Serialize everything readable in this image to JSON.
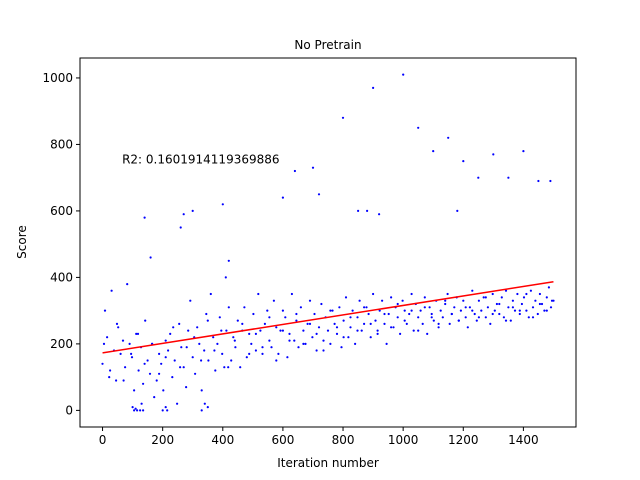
{
  "chart_data": {
    "type": "scatter",
    "title": "No Pretrain",
    "xlabel": "Iteration number",
    "ylabel": "Score",
    "xlim": [
      -75,
      1575
    ],
    "ylim": [
      -50,
      1060
    ],
    "xticks": [
      0,
      200,
      400,
      600,
      800,
      1000,
      1200,
      1400
    ],
    "yticks": [
      0,
      200,
      400,
      600,
      800,
      1000
    ],
    "grid": false,
    "annotation": {
      "text": "R2: 0.1601914119369886",
      "x": 65,
      "y": 755
    },
    "regression_line": {
      "x": [
        0,
        1500
      ],
      "y": [
        173,
        387
      ],
      "color": "#ff0000"
    },
    "point_color": "#0000ff",
    "series": [
      {
        "x": [
          0,
          8,
          15,
          22,
          30,
          38,
          45,
          52,
          60,
          68,
          75,
          82,
          90,
          98,
          105,
          112,
          120,
          128,
          135,
          142,
          150,
          158,
          165,
          172,
          180,
          188,
          195,
          202,
          210,
          218,
          225,
          232,
          240,
          248,
          255,
          262,
          270,
          278,
          285,
          292,
          300,
          308,
          315,
          322,
          330,
          338,
          345,
          352,
          360,
          368,
          375,
          382,
          390,
          398,
          405,
          412,
          420,
          428,
          435,
          442,
          450,
          458,
          465,
          472,
          480,
          488,
          495,
          502,
          510,
          518,
          525,
          532,
          540,
          548,
          555,
          562,
          570,
          578,
          585,
          592,
          600,
          608,
          615,
          622,
          630,
          638,
          645,
          652,
          660,
          668,
          675,
          682,
          690,
          698,
          705,
          712,
          720,
          728,
          735,
          742,
          750,
          758,
          765,
          772,
          780,
          788,
          795,
          802,
          810,
          818,
          825,
          832,
          840,
          848,
          855,
          862,
          870,
          878,
          885,
          892,
          900,
          908,
          915,
          922,
          930,
          938,
          945,
          952,
          960,
          968,
          975,
          982,
          990,
          998,
          1005,
          1012,
          1020,
          1028,
          1035,
          1042,
          1050,
          1058,
          1065,
          1072,
          1080,
          1088,
          1095,
          1102,
          1110,
          1118,
          1125,
          1132,
          1140,
          1148,
          1155,
          1162,
          1170,
          1178,
          1185,
          1192,
          1200,
          1208,
          1215,
          1222,
          1230,
          1238,
          1245,
          1252,
          1260,
          1268,
          1275,
          1282,
          1290,
          1298,
          1305,
          1312,
          1320,
          1328,
          1335,
          1342,
          1350,
          1358,
          1365,
          1372,
          1380,
          1388,
          1395,
          1402,
          1410,
          1418,
          1425,
          1432,
          1440,
          1448,
          1455,
          1462,
          1470,
          1478,
          1485,
          1492,
          1500,
          5,
          25,
          48,
          70,
          95,
          118,
          140,
          165,
          188,
          210,
          235,
          258,
          280,
          305,
          328,
          350,
          372,
          395,
          418,
          440,
          465,
          488,
          510,
          532,
          555,
          578,
          600,
          622,
          645,
          668,
          690,
          712,
          735,
          758,
          780,
          802,
          825,
          848,
          870,
          892,
          915,
          938,
          960,
          982,
          1005,
          1028,
          1050,
          1072,
          1095,
          1118,
          1140,
          1162,
          1185,
          1208,
          1230,
          1252,
          1275,
          1298,
          1320,
          1342,
          1365,
          1388,
          1410,
          1432,
          1455,
          1478,
          1495,
          100,
          105,
          110,
          115,
          125,
          130,
          135,
          200,
          210,
          215,
          330,
          340,
          350,
          260,
          270,
          300,
          140,
          160,
          400,
          410,
          420,
          600,
          640,
          700,
          720,
          800,
          850,
          880,
          900,
          920,
          1000,
          1050,
          1100,
          1150,
          1180,
          1200,
          1250,
          1300,
          1350,
          1400,
          1450,
          1490
        ],
        "y": [
          140,
          300,
          220,
          100,
          360,
          180,
          90,
          250,
          170,
          210,
          130,
          380,
          200,
          160,
          60,
          230,
          120,
          190,
          80,
          270,
          150,
          110,
          200,
          40,
          90,
          170,
          140,
          60,
          210,
          180,
          230,
          100,
          150,
          20,
          260,
          190,
          130,
          70,
          240,
          330,
          160,
          110,
          250,
          200,
          60,
          180,
          290,
          150,
          350,
          220,
          120,
          200,
          280,
          170,
          130,
          240,
          310,
          150,
          220,
          190,
          270,
          130,
          240,
          310,
          160,
          230,
          200,
          290,
          180,
          350,
          240,
          170,
          260,
          300,
          210,
          190,
          330,
          250,
          170,
          240,
          300,
          280,
          160,
          230,
          350,
          210,
          270,
          190,
          310,
          240,
          200,
          260,
          330,
          220,
          290,
          180,
          250,
          320,
          210,
          280,
          240,
          200,
          300,
          260,
          230,
          310,
          190,
          270,
          340,
          220,
          250,
          300,
          200,
          280,
          330,
          240,
          260,
          310,
          290,
          220,
          350,
          270,
          240,
          300,
          330,
          260,
          200,
          290,
          340,
          250,
          310,
          280,
          230,
          330,
          300,
          260,
          290,
          350,
          240,
          320,
          280,
          300,
          260,
          340,
          230,
          310,
          290,
          270,
          330,
          250,
          300,
          280,
          320,
          350,
          260,
          290,
          310,
          340,
          270,
          300,
          330,
          280,
          250,
          310,
          360,
          290,
          270,
          330,
          300,
          340,
          280,
          310,
          260,
          350,
          300,
          320,
          290,
          340,
          280,
          360,
          310,
          270,
          330,
          300,
          350,
          290,
          320,
          340,
          300,
          280,
          360,
          310,
          330,
          290,
          350,
          320,
          300,
          340,
          370,
          310,
          330,
          200,
          120,
          260,
          90,
          170,
          230,
          140,
          200,
          110,
          160,
          250,
          130,
          190,
          220,
          150,
          270,
          180,
          240,
          130,
          210,
          260,
          170,
          230,
          190,
          280,
          150,
          240,
          210,
          290,
          200,
          260,
          230,
          180,
          300,
          250,
          220,
          280,
          240,
          310,
          260,
          230,
          290,
          250,
          320,
          270,
          300,
          240,
          310,
          280,
          260,
          330,
          290,
          270,
          310,
          300,
          280,
          340,
          290,
          320,
          270,
          310,
          300,
          350,
          280,
          320,
          300,
          330,
          10,
          0,
          5,
          0,
          0,
          20,
          0,
          0,
          10,
          0,
          0,
          20,
          10,
          550,
          590,
          600,
          580,
          460,
          620,
          400,
          450,
          640,
          720,
          730,
          650,
          880,
          600,
          600,
          970,
          590,
          1010,
          850,
          780,
          820,
          600,
          750,
          700,
          770,
          700,
          780,
          690,
          690
        ],
        "color": "#0000ff"
      }
    ]
  }
}
